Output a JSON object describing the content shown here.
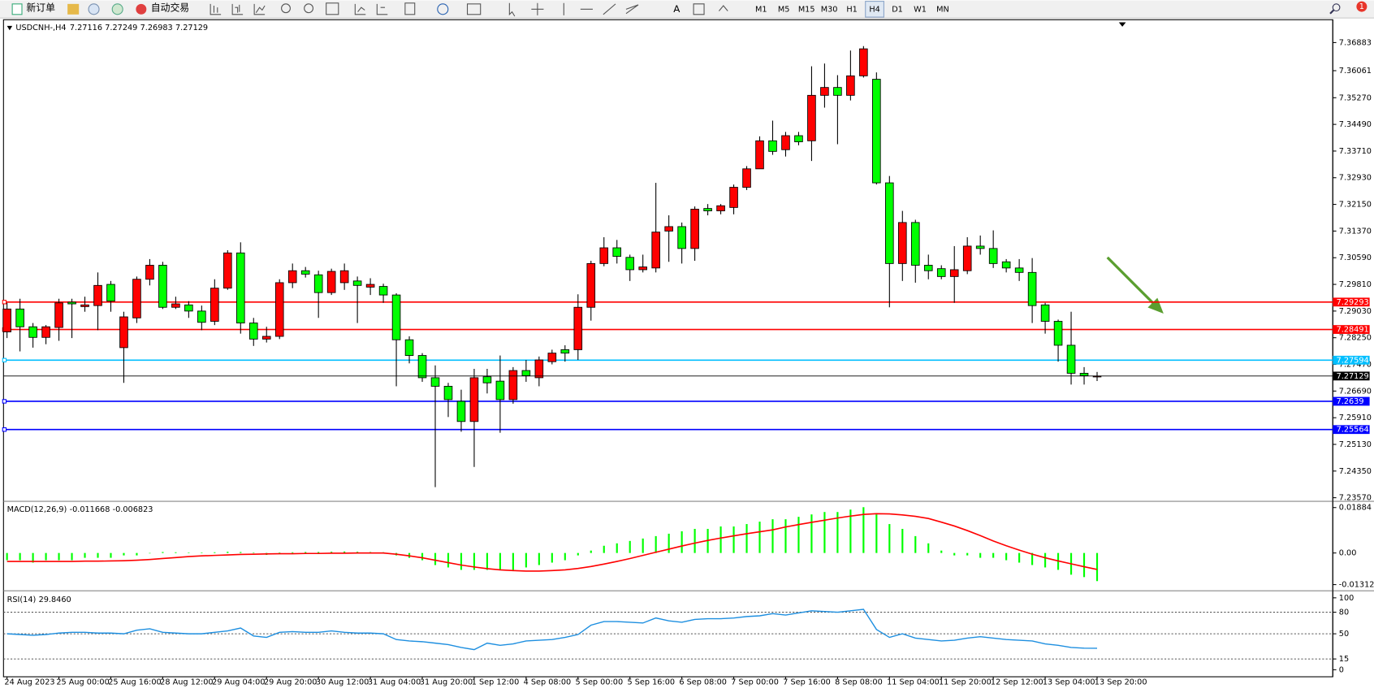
{
  "toolbar": {
    "new_order": "新订单",
    "auto_trade": "自动交易",
    "timeframes": [
      "M1",
      "M5",
      "M15",
      "M30",
      "H1",
      "H4",
      "D1",
      "W1",
      "MN"
    ],
    "notifications": 1
  },
  "chart_data": [
    {
      "type": "candlestick",
      "symbol": "USDCNH-,H4",
      "categories": [
        "24 Aug 2023",
        null,
        null,
        null,
        "25 Aug 00:00",
        null,
        null,
        null,
        "25 Aug 16:00",
        null,
        null,
        null,
        "28 Aug 12:00",
        null,
        null,
        null,
        "29 Aug 04:00",
        null,
        null,
        null,
        "29 Aug 20:00",
        null,
        null,
        null,
        "30 Aug 12:00",
        null,
        null,
        null,
        "31 Aug 04:00",
        null,
        null,
        null,
        "31 Aug 20:00",
        null,
        null,
        null,
        "1 Sep 12:00",
        null,
        null,
        null,
        "4 Sep 08:00",
        null,
        null,
        null,
        "5 Sep 00:00",
        null,
        null,
        null,
        "5 Sep 16:00",
        null,
        null,
        null,
        "6 Sep 08:00",
        null,
        null,
        null,
        "7 Sep 00:00",
        null,
        null,
        null,
        "7 Sep 16:00",
        null,
        null,
        null,
        "8 Sep 08:00",
        null,
        null,
        null,
        "11 Sep 04:00",
        null,
        null,
        null,
        "11 Sep 20:00",
        null,
        null,
        null,
        "12 Sep 12:00",
        null,
        null,
        null,
        "13 Sep 04:00",
        null,
        null,
        null,
        "13 Sep 20:00"
      ],
      "open": [
        7.2842,
        7.2909,
        7.2857,
        7.2826,
        7.2855,
        7.2929,
        7.2916,
        7.2919,
        7.2981,
        7.2796,
        7.2883,
        7.2996,
        7.3037,
        7.2914,
        7.2921,
        7.2903,
        7.2873,
        7.297,
        7.3073,
        7.2868,
        7.2821,
        7.2829,
        7.2986,
        7.3021,
        7.3009,
        7.2957,
        7.2986,
        7.2991,
        7.2973,
        7.2975,
        7.295,
        7.2819,
        7.2773,
        7.2708,
        7.2683,
        7.2639,
        7.258,
        7.2711,
        7.2698,
        7.2644,
        7.2729,
        7.2708,
        7.2755,
        7.279,
        7.279,
        7.2914,
        7.3042,
        7.3088,
        7.306,
        7.3024,
        7.3029,
        7.3137,
        7.315,
        7.3086,
        7.3203,
        7.3196,
        7.3206,
        7.3265,
        7.3319,
        7.3401,
        7.3375,
        7.3416,
        7.3401,
        7.3534,
        7.3557,
        7.3534,
        7.3591,
        7.3581,
        7.3278,
        7.3042,
        7.3162,
        7.3037,
        7.3027,
        7.3004,
        7.3021,
        7.3093,
        7.3086,
        7.3047,
        7.3029,
        7.3016,
        7.2921,
        7.2873,
        7.2803,
        7.2721,
        7.27116
      ],
      "high": [
        7.2927,
        7.2939,
        7.2868,
        7.2862,
        7.2939,
        7.2939,
        7.2945,
        7.3016,
        7.2991,
        7.2901,
        7.3004,
        7.3055,
        7.3047,
        7.2945,
        7.2932,
        7.2919,
        7.2996,
        7.3081,
        7.3104,
        7.2883,
        7.2857,
        7.2996,
        7.3042,
        7.3032,
        7.3021,
        7.3027,
        7.3042,
        7.3004,
        7.2999,
        7.2983,
        7.2955,
        7.2829,
        7.278,
        7.2744,
        7.2693,
        7.2673,
        7.2734,
        7.2734,
        7.2773,
        7.2739,
        7.276,
        7.277,
        7.279,
        7.2803,
        7.2952,
        7.305,
        7.3119,
        7.3111,
        7.3068,
        7.3068,
        7.3278,
        7.3183,
        7.3162,
        7.3209,
        7.3216,
        7.3216,
        7.3273,
        7.3327,
        7.3414,
        7.346,
        7.3427,
        7.3427,
        7.3619,
        7.3627,
        7.3593,
        7.3665,
        7.3678,
        7.3601,
        7.3298,
        7.3196,
        7.317,
        7.3068,
        7.3037,
        7.3093,
        7.3119,
        7.3124,
        7.3139,
        7.3055,
        7.3055,
        7.3058,
        7.2927,
        7.2878,
        7.2901,
        7.2739,
        7.27249
      ],
      "low": [
        7.2824,
        7.2785,
        7.2796,
        7.2806,
        7.2816,
        7.2824,
        7.2901,
        7.2847,
        7.2901,
        7.2693,
        7.2868,
        7.2978,
        7.2909,
        7.2909,
        7.2883,
        7.2847,
        7.2862,
        7.2965,
        7.2837,
        7.2801,
        7.2811,
        7.2821,
        7.297,
        7.3001,
        7.2883,
        7.295,
        7.2965,
        7.2868,
        7.295,
        7.2927,
        7.2683,
        7.275,
        7.2696,
        7.2388,
        7.2593,
        7.255,
        7.2447,
        7.2662,
        7.2547,
        7.2632,
        7.2696,
        7.2683,
        7.2747,
        7.2755,
        7.276,
        7.2875,
        7.3034,
        7.3042,
        7.2991,
        7.3016,
        7.3016,
        7.3047,
        7.3042,
        7.305,
        7.3183,
        7.3186,
        7.3186,
        7.3257,
        7.3319,
        7.336,
        7.3355,
        7.3388,
        7.3342,
        7.3498,
        7.3391,
        7.3519,
        7.3586,
        7.3273,
        7.2914,
        7.2991,
        7.2986,
        7.2996,
        7.2996,
        7.2927,
        7.3011,
        7.3068,
        7.3029,
        7.3016,
        7.2991,
        7.2868,
        7.2837,
        7.2755,
        7.2688,
        7.2688,
        7.26983
      ],
      "close": [
        7.2909,
        7.2857,
        7.2826,
        7.2857,
        7.2927,
        7.2924,
        7.2921,
        7.2978,
        7.2932,
        7.2886,
        7.2996,
        7.3037,
        7.2914,
        7.2924,
        7.2903,
        7.287,
        7.297,
        7.3073,
        7.2868,
        7.2821,
        7.2829,
        7.2986,
        7.3021,
        7.3011,
        7.2957,
        7.3019,
        7.3021,
        7.2978,
        7.2981,
        7.295,
        7.2819,
        7.2773,
        7.2708,
        7.2683,
        7.2644,
        7.258,
        7.2708,
        7.2693,
        7.2644,
        7.2729,
        7.2714,
        7.276,
        7.278,
        7.278,
        7.2914,
        7.3042,
        7.3088,
        7.3063,
        7.3024,
        7.3032,
        7.3134,
        7.315,
        7.3086,
        7.3201,
        7.3196,
        7.3211,
        7.3265,
        7.3319,
        7.3401,
        7.337,
        7.3416,
        7.3398,
        7.3534,
        7.3557,
        7.3534,
        7.3591,
        7.367,
        7.3278,
        7.3042,
        7.3162,
        7.3037,
        7.3021,
        7.3004,
        7.3024,
        7.3093,
        7.3086,
        7.3042,
        7.3029,
        7.3016,
        7.2919,
        7.2873,
        7.2803,
        7.2721,
        7.2714,
        7.27129
      ],
      "up_color": "#ff0000",
      "down_color": "#00ff00",
      "wick_color": "#000000",
      "ylim": [
        7.2349,
        7.375
      ],
      "yticks": [
        7.36883,
        7.36061,
        {
          "value": 7.3527,
          "label": "7.35270"
        },
        {
          "value": 7.3449,
          "label": "7.34490"
        },
        {
          "value": 7.3371,
          "label": "7.33710"
        },
        {
          "value": 7.3293,
          "label": "7.32930"
        },
        {
          "value": 7.3215,
          "label": "7.32150"
        },
        {
          "value": 7.3137,
          "label": "7.31370"
        },
        {
          "value": 7.3059,
          "label": "7.30590"
        },
        {
          "value": 7.2981,
          "label": "7.29810"
        },
        {
          "value": 7.2903,
          "label": "7.29030"
        },
        {
          "value": 7.2825,
          "label": "7.28250"
        },
        {
          "value": 7.2747,
          "label": "7.27470"
        },
        {
          "value": 7.2669,
          "label": "7.26690"
        },
        {
          "value": 7.2591,
          "label": "7.25910"
        },
        {
          "value": 7.2513,
          "label": "7.25130"
        },
        {
          "value": 7.2435,
          "label": "7.24350"
        },
        {
          "value": 7.2357,
          "label": "7.23570"
        }
      ],
      "levels": [
        {
          "value": 7.29293,
          "color": "#ff0000"
        },
        {
          "value": 7.28491,
          "color": "#ff0000"
        },
        {
          "value": 7.27594,
          "color": "#00bfff"
        },
        {
          "value": 7.2639,
          "color": "#0000ff"
        },
        {
          "value": 7.25564,
          "color": "#0000ff"
        }
      ],
      "last_price_color": "#000000",
      "grid": false
    },
    {
      "type": "macd",
      "name": "MACD(12,26,9)",
      "histogram": {
        "color": "#00ff00",
        "values": [
          -0.003,
          -0.003,
          -0.004,
          -0.003,
          -0.003,
          -0.003,
          -0.002,
          -0.002,
          -0.002,
          -0.001,
          -0.001,
          0,
          0.0004,
          0.0003,
          0.0002,
          0.0002,
          0.0003,
          0.0005,
          0.0004,
          0.0002,
          -0.0008,
          0.0002,
          0.0003,
          0.0004,
          0.0004,
          0.0005,
          0.0006,
          0.0005,
          0.0004,
          0.0003,
          -0.001,
          -0.002,
          -0.003,
          -0.005,
          -0.006,
          -0.007,
          -0.007,
          -0.007,
          -0.007,
          -0.007,
          -0.006,
          -0.005,
          -0.004,
          -0.003,
          -0.001,
          0.001,
          0.003,
          0.004,
          0.005,
          0.006,
          0.007,
          0.008,
          0.009,
          0.01,
          0.01,
          0.011,
          0.011,
          0.012,
          0.013,
          0.014,
          0.014,
          0.015,
          0.016,
          0.017,
          0.017,
          0.018,
          0.019,
          0.016,
          0.012,
          0.01,
          0.007,
          0.004,
          0.001,
          -0.001,
          -0.001,
          -0.002,
          -0.002,
          -0.003,
          -0.004,
          -0.005,
          -0.006,
          -0.007,
          -0.009,
          -0.01,
          -0.011668
        ]
      },
      "signal": {
        "color": "#ff0000",
        "values": [
          -0.0035,
          -0.0035,
          -0.0035,
          -0.0035,
          -0.0035,
          -0.0035,
          -0.0034,
          -0.0034,
          -0.0033,
          -0.0032,
          -0.003,
          -0.0027,
          -0.0023,
          -0.0019,
          -0.0015,
          -0.0012,
          -0.001,
          -0.0008,
          -0.0006,
          -0.0005,
          -0.0004,
          -0.0003,
          -0.0003,
          -0.0002,
          -0.0002,
          -0.0001,
          -0.0001,
          0,
          0,
          0,
          -0.0005,
          -0.0012,
          -0.002,
          -0.003,
          -0.004,
          -0.005,
          -0.0058,
          -0.0065,
          -0.007,
          -0.0073,
          -0.0075,
          -0.0075,
          -0.0073,
          -0.007,
          -0.0064,
          -0.0056,
          -0.0046,
          -0.0035,
          -0.0023,
          -0.001,
          0.0003,
          0.0016,
          0.0029,
          0.0041,
          0.0052,
          0.0062,
          0.0071,
          0.008,
          0.0088,
          0.0096,
          0.0108,
          0.0118,
          0.0127,
          0.0136,
          0.0145,
          0.0153,
          0.016,
          0.0163,
          0.0162,
          0.0158,
          0.0152,
          0.0143,
          0.0128,
          0.0112,
          0.0093,
          0.0072,
          0.005,
          0.003,
          0.0012,
          -0.0005,
          -0.002,
          -0.0033,
          -0.0045,
          -0.0057,
          -0.006823
        ]
      },
      "ylim": [
        -0.0146,
        0.0207
      ],
      "yticks": [
        0.01884,
        {
          "value": 0,
          "label": "0.00"
        },
        -0.01312
      ]
    },
    {
      "type": "line",
      "name": "RSI(14)",
      "readout": "29.8460",
      "color": "#1e8fe0",
      "values": [
        50,
        49,
        48,
        49,
        51,
        52,
        52,
        51,
        51,
        50,
        55,
        57,
        52,
        51,
        50,
        50,
        52,
        54,
        58,
        47,
        45,
        52,
        53,
        52,
        52,
        54,
        52,
        51,
        51,
        50,
        42,
        40,
        39,
        37,
        35,
        31,
        28,
        37,
        34,
        36,
        40,
        41,
        42,
        45,
        49,
        62,
        67,
        67,
        66,
        65,
        72,
        68,
        66,
        70,
        71,
        71,
        72,
        74,
        75,
        78,
        76,
        79,
        82,
        81,
        80,
        82,
        84,
        56,
        45,
        50,
        44,
        42,
        40,
        41,
        44,
        46,
        44,
        42,
        41,
        40,
        36,
        34,
        31,
        30,
        29.846
      ],
      "ylim": [
        0,
        100
      ],
      "yticks": [
        100,
        80,
        50,
        15,
        0
      ],
      "levels": [
        80,
        50,
        15
      ]
    }
  ]
}
